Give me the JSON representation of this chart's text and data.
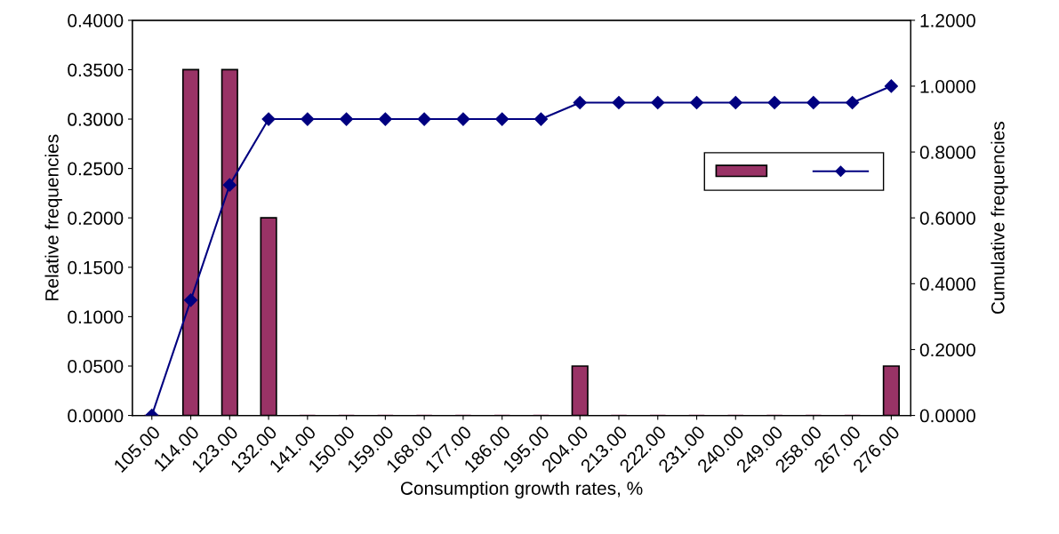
{
  "chart_data": {
    "type": "bar",
    "xlabel": "Consumption growth rates, %",
    "ylabel": "Relative frequencies",
    "y2label": "Cumulative frequencies",
    "categories": [
      "105.00",
      "114.00",
      "123.00",
      "132.00",
      "141.00",
      "150.00",
      "159.00",
      "168.00",
      "177.00",
      "186.00",
      "195.00",
      "204.00",
      "213.00",
      "222.00",
      "231.00",
      "240.00",
      "249.00",
      "258.00",
      "267.00",
      "276.00"
    ],
    "series": [
      {
        "color": "#993366",
        "values": [
          0,
          0.35,
          0.35,
          0.2,
          0,
          0,
          0,
          0,
          0,
          0,
          0,
          0.05,
          0,
          0,
          0,
          0,
          0,
          0,
          0,
          0.05
        ]
      },
      {
        "type": "line",
        "axis": "y2",
        "color": "#000080",
        "marker": "diamond",
        "values": [
          0,
          0.35,
          0.7,
          0.9,
          0.9,
          0.9,
          0.9,
          0.9,
          0.9,
          0.9,
          0.9,
          0.95,
          0.95,
          0.95,
          0.95,
          0.95,
          0.95,
          0.95,
          0.95,
          1.0
        ]
      }
    ],
    "ylim": [
      0,
      0.4
    ],
    "yticks": [
      {
        "value": 0,
        "label": "0.0000"
      },
      {
        "value": 0.05,
        "label": "0.0500"
      },
      {
        "value": 0.1,
        "label": "0.1000"
      },
      {
        "value": 0.15,
        "label": "0.1500"
      },
      {
        "value": 0.2,
        "label": "0.2000"
      },
      {
        "value": 0.25,
        "label": "0.2500"
      },
      {
        "value": 0.3,
        "label": "0.3000"
      },
      {
        "value": 0.35,
        "label": "0.3500"
      },
      {
        "value": 0.4,
        "label": "0.4000"
      }
    ],
    "y2lim": [
      0,
      1.2
    ],
    "y2ticks": [
      {
        "value": 0,
        "label": "0.0000"
      },
      {
        "value": 0.2,
        "label": "0.2000"
      },
      {
        "value": 0.4,
        "label": "0.4000"
      },
      {
        "value": 0.6,
        "label": "0.6000"
      },
      {
        "value": 0.8,
        "label": "0.8000"
      },
      {
        "value": 1.0,
        "label": "1.0000"
      },
      {
        "value": 1.2,
        "label": "1.2000"
      }
    ],
    "grid": false
  }
}
